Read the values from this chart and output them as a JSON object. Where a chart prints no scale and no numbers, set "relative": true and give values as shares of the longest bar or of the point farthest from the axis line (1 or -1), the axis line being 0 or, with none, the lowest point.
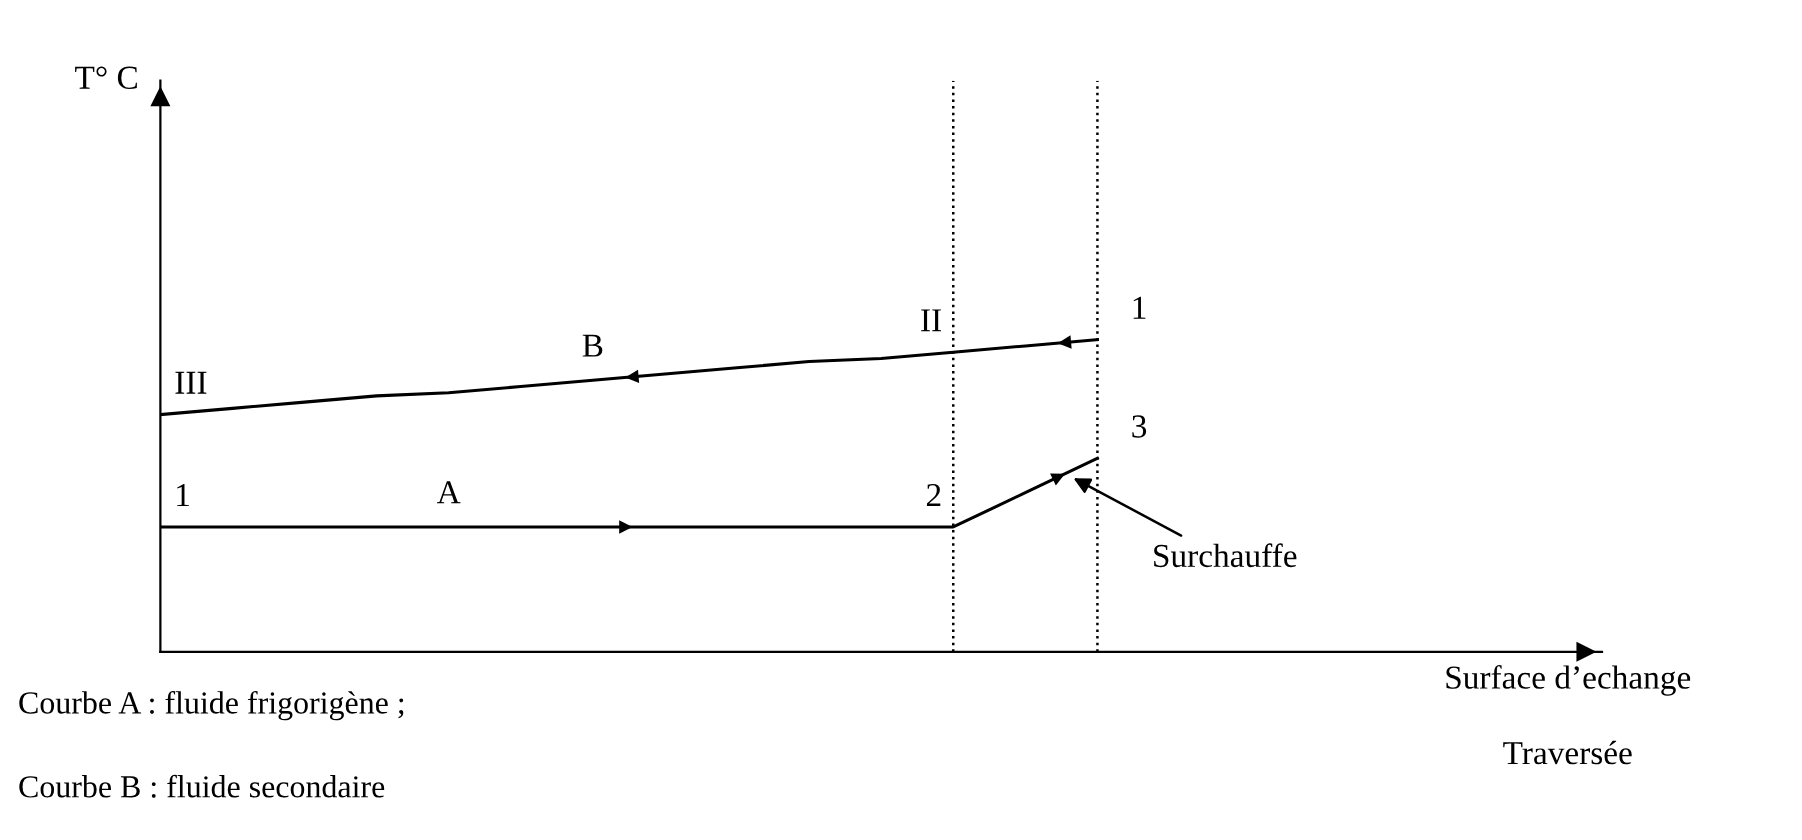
{
  "chart_data": {
    "type": "line",
    "relative": true,
    "categories": [
      null,
      null,
      null,
      null,
      null,
      null,
      null,
      null,
      null,
      null,
      null,
      null,
      null,
      null
    ],
    "marker": "none",
    "line_style": "solid",
    "series": [
      {
        "name": "B",
        "color": "#000000",
        "values": [
          0.76,
          0.78,
          0.8,
          0.82,
          0.83,
          0.85,
          0.87,
          0.89,
          0.91,
          0.93,
          0.94,
          0.96,
          0.98,
          1.0
        ]
      },
      {
        "name": "A",
        "color": "#000000",
        "values": [
          0.4,
          0.4,
          0.4,
          0.4,
          0.4,
          0.4,
          0.4,
          0.4,
          0.4,
          0.4,
          0.4,
          0.4,
          0.51,
          0.62
        ]
      }
    ],
    "annotations": [
      "T° C",
      "III",
      "II",
      "1",
      "1",
      "2",
      "3",
      "Surchauffe",
      "Surface d’echange",
      "Traversée",
      "Courbe A : fluide frigorigène ;",
      "Courbe B : fluide secondaire"
    ]
  }
}
